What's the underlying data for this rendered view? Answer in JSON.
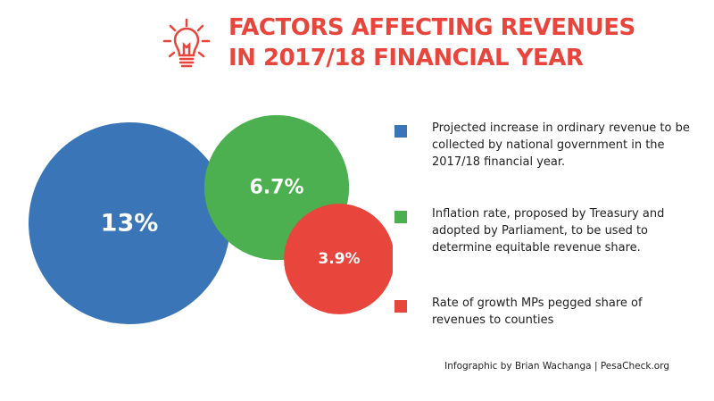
{
  "title": {
    "line1": "FACTORS AFFECTING REVENUES",
    "line2": "IN 2017/18 FINANCIAL YEAR"
  },
  "icon": "lightbulb-icon",
  "colors": {
    "title": "#e8453c",
    "blue": "#3a75b7",
    "green": "#4caf50",
    "red": "#e8453c"
  },
  "chart_data": {
    "type": "bubble",
    "title": "FACTORS AFFECTING REVENUES IN 2017/18 FINANCIAL YEAR",
    "series": [
      {
        "label": "13%",
        "value": 13,
        "color": "#3a75b7",
        "description": "Projected increase in ordinary revenue to be collected by national government in the 2017/18 financial year."
      },
      {
        "label": "6.7%",
        "value": 6.7,
        "color": "#4caf50",
        "description": "Inflation rate, proposed by Treasury and adopted by Parliament, to be used to determine equitable revenue share."
      },
      {
        "label": "3.9%",
        "value": 3.9,
        "color": "#e8453c",
        "description": "Rate of growth MPs pegged share of revenues to counties"
      }
    ],
    "legend_position": "right"
  },
  "legend": [
    {
      "text": "Projected increase in ordinary revenue to be collected by national government in the 2017/18 financial year."
    },
    {
      "text": "Inflation rate, proposed by Treasury and adopted by Parliament, to be used to determine equitable revenue share."
    },
    {
      "text": "Rate of growth MPs pegged share of revenues to counties"
    }
  ],
  "credit": "Infographic by Brian Wachanga | PesaCheck.org"
}
